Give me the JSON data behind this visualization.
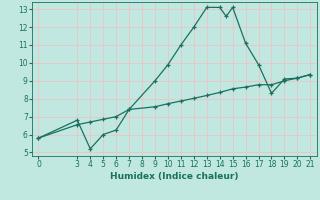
{
  "xlabel": "Humidex (Indice chaleur)",
  "bg_color": "#c0e8e0",
  "grid_color": "#d8f0e8",
  "line_color": "#1a7060",
  "xlim": [
    -0.5,
    21.5
  ],
  "ylim": [
    4.8,
    13.4
  ],
  "xticks": [
    0,
    3,
    4,
    5,
    6,
    7,
    8,
    9,
    10,
    11,
    12,
    13,
    14,
    15,
    16,
    17,
    18,
    19,
    20,
    21
  ],
  "yticks": [
    5,
    6,
    7,
    8,
    9,
    10,
    11,
    12,
    13
  ],
  "line1_x": [
    0,
    3,
    4,
    5,
    6,
    7,
    9,
    10,
    11,
    12,
    13,
    14,
    14.5,
    15,
    16,
    17,
    18,
    19,
    20,
    21
  ],
  "line1_y": [
    5.8,
    6.8,
    5.2,
    6.0,
    6.25,
    7.4,
    9.0,
    9.9,
    11.0,
    12.0,
    13.1,
    13.1,
    12.6,
    13.1,
    11.1,
    9.9,
    8.3,
    9.1,
    9.15,
    9.35
  ],
  "line2_x": [
    0,
    3,
    4,
    5,
    6,
    7,
    9,
    10,
    11,
    12,
    13,
    14,
    15,
    16,
    17,
    18,
    19,
    20,
    21
  ],
  "line2_y": [
    5.8,
    6.55,
    6.7,
    6.85,
    7.0,
    7.4,
    7.55,
    7.72,
    7.87,
    8.02,
    8.18,
    8.35,
    8.55,
    8.65,
    8.78,
    8.78,
    9.0,
    9.15,
    9.35
  ]
}
